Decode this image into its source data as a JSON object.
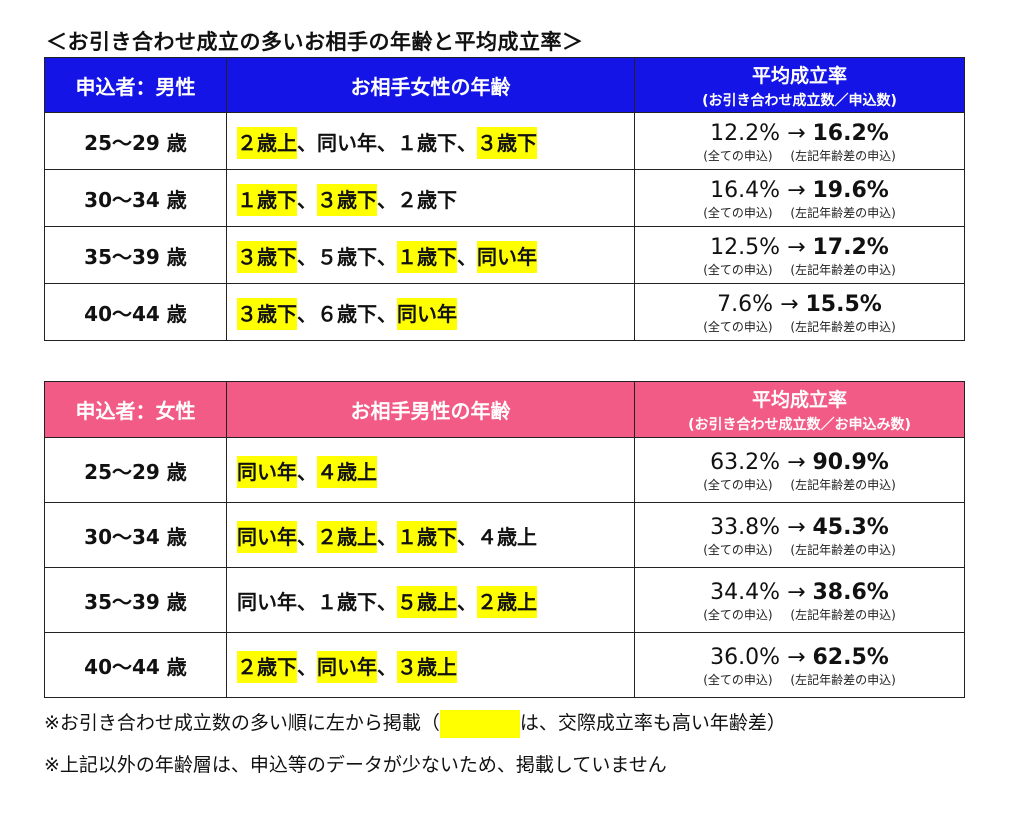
{
  "title": "＜お引き合わせ成立の多いお相手の年齢と平均成立率＞",
  "colors": {
    "male_header": "#1414e6",
    "female_header": "#f25b85",
    "highlight": "#ffff00"
  },
  "male": {
    "header": {
      "applicant": "申込者：男性",
      "partner": "お相手女性の年齢",
      "rate_title": "平均成立率",
      "rate_sub": "(お引き合わせ成立数／申込数)"
    },
    "rows": [
      {
        "age": "25～29 歳",
        "segs": [
          {
            "t": "２歳上",
            "hl": true
          },
          {
            "t": "、同い年、１歳下、",
            "hl": false
          },
          {
            "t": "３歳下",
            "hl": true
          }
        ],
        "all": "12.2%",
        "arrow": "→",
        "diff": "16.2%",
        "all_label": "(全ての申込)",
        "diff_label": "(左記年齢差の申込)"
      },
      {
        "age": "30～34 歳",
        "segs": [
          {
            "t": "１歳下",
            "hl": true
          },
          {
            "t": "、",
            "hl": false
          },
          {
            "t": "３歳下",
            "hl": true
          },
          {
            "t": "、２歳下",
            "hl": false
          }
        ],
        "all": "16.4%",
        "arrow": "→",
        "diff": "19.6%",
        "all_label": "(全ての申込)",
        "diff_label": "(左記年齢差の申込)"
      },
      {
        "age": "35～39 歳",
        "segs": [
          {
            "t": "３歳下",
            "hl": true
          },
          {
            "t": "、５歳下、",
            "hl": false
          },
          {
            "t": "１歳下",
            "hl": true
          },
          {
            "t": "、",
            "hl": false
          },
          {
            "t": "同い年",
            "hl": true
          }
        ],
        "all": "12.5%",
        "arrow": "→",
        "diff": "17.2%",
        "all_label": "(全ての申込)",
        "diff_label": "(左記年齢差の申込)"
      },
      {
        "age": "40～44 歳",
        "segs": [
          {
            "t": "３歳下",
            "hl": true
          },
          {
            "t": "、６歳下、",
            "hl": false
          },
          {
            "t": "同い年",
            "hl": true
          }
        ],
        "all": "7.6%",
        "arrow": "→",
        "diff": "15.5%",
        "all_label": "(全ての申込)",
        "diff_label": "(左記年齢差の申込)"
      }
    ]
  },
  "female": {
    "header": {
      "applicant": "申込者：女性",
      "partner": "お相手男性の年齢",
      "rate_title": "平均成立率",
      "rate_sub": "(お引き合わせ成立数／お申込み数)"
    },
    "rows": [
      {
        "age": "25～29 歳",
        "segs": [
          {
            "t": "同い年",
            "hl": true
          },
          {
            "t": "、",
            "hl": false
          },
          {
            "t": "４歳上",
            "hl": true
          }
        ],
        "all": "63.2%",
        "arrow": "→",
        "diff": "90.9%",
        "all_label": "(全ての申込)",
        "diff_label": "(左記年齢差の申込)"
      },
      {
        "age": "30～34 歳",
        "segs": [
          {
            "t": "同い年",
            "hl": true
          },
          {
            "t": "、",
            "hl": false
          },
          {
            "t": "２歳上",
            "hl": true
          },
          {
            "t": "、",
            "hl": false
          },
          {
            "t": "１歳下",
            "hl": true
          },
          {
            "t": "、４歳上",
            "hl": false
          }
        ],
        "all": "33.8%",
        "arrow": "→",
        "diff": "45.3%",
        "all_label": "(全ての申込)",
        "diff_label": "(左記年齢差の申込)"
      },
      {
        "age": "35～39 歳",
        "segs": [
          {
            "t": "同い年、１歳下、",
            "hl": false
          },
          {
            "t": "５歳上",
            "hl": true
          },
          {
            "t": "、",
            "hl": false
          },
          {
            "t": "２歳上",
            "hl": true
          }
        ],
        "all": "34.4%",
        "arrow": "→",
        "diff": "38.6%",
        "all_label": "(全ての申込)",
        "diff_label": "(左記年齢差の申込)"
      },
      {
        "age": "40～44 歳",
        "segs": [
          {
            "t": "２歳下",
            "hl": true
          },
          {
            "t": "、",
            "hl": false
          },
          {
            "t": "同い年",
            "hl": true
          },
          {
            "t": "、",
            "hl": false
          },
          {
            "t": "３歳上",
            "hl": true
          }
        ],
        "all": "36.0%",
        "arrow": "→",
        "diff": "62.5%",
        "all_label": "(全ての申込)",
        "diff_label": "(左記年齢差の申込)"
      }
    ]
  },
  "notes": {
    "n1_before": "※お引き合わせ成立数の多い順に左から掲載（",
    "n1_after": "は、交際成立率も高い年齢差）",
    "n2": "※上記以外の年齢層は、申込等のデータが少ないため、掲載していません"
  }
}
